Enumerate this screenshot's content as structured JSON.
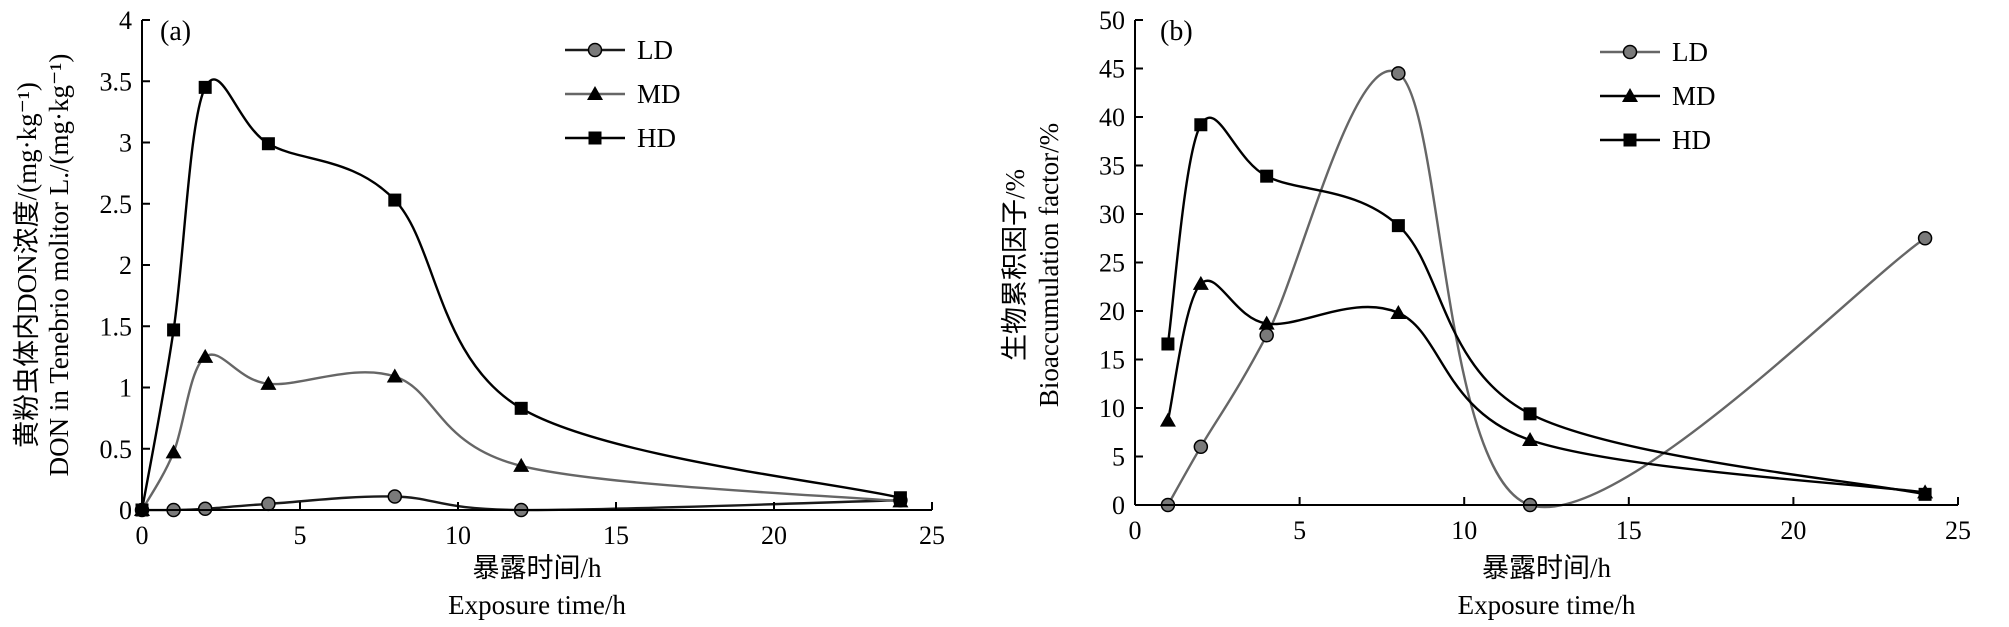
{
  "chart_data": [
    {
      "type": "line",
      "panel_label": "(a)",
      "ylabel_lines": [
        "黄粉虫体内DON浓度/(mg·kg⁻¹)",
        "DON in Tenebrio molitor L./(mg·kg⁻¹)"
      ],
      "xlabel_lines": [
        "暴露时间/h",
        "Exposure time/h"
      ],
      "xlim": [
        0,
        25
      ],
      "ylim": [
        0,
        4
      ],
      "xticks": [
        0,
        5,
        10,
        15,
        20,
        25
      ],
      "yticks": [
        0,
        0.5,
        1,
        1.5,
        2,
        2.5,
        3,
        3.5,
        4
      ],
      "ytick_labels": [
        "0",
        "0.5",
        "1",
        "1.5",
        "2",
        "2.5",
        "3",
        "3.5",
        "4"
      ],
      "grid": false,
      "legend_position": "top-right",
      "series": [
        {
          "name": "LD",
          "marker": "circle",
          "color": "#1a1a1a",
          "x": [
            0,
            1,
            2,
            4,
            8,
            12,
            24
          ],
          "y": [
            0,
            0,
            0.01,
            0.05,
            0.11,
            0,
            0.08
          ]
        },
        {
          "name": "MD",
          "marker": "triangle",
          "color": "#666666",
          "x": [
            0,
            1,
            2,
            4,
            8,
            12,
            24
          ],
          "y": [
            0,
            0.47,
            1.25,
            1.03,
            1.09,
            0.36,
            0.07
          ]
        },
        {
          "name": "HD",
          "marker": "square",
          "color": "#000000",
          "x": [
            0,
            1,
            2,
            4,
            8,
            12,
            24
          ],
          "y": [
            0,
            1.47,
            3.45,
            2.99,
            2.53,
            0.83,
            0.1
          ]
        }
      ]
    },
    {
      "type": "line",
      "panel_label": "(b)",
      "ylabel_lines": [
        "生物累积因子/%",
        "Bioaccumulation factor/%"
      ],
      "xlabel_lines": [
        "暴露时间/h",
        "Exposure time/h"
      ],
      "xlim": [
        0,
        25
      ],
      "ylim": [
        0,
        50
      ],
      "xticks": [
        0,
        5,
        10,
        15,
        20,
        25
      ],
      "yticks": [
        0,
        5,
        10,
        15,
        20,
        25,
        30,
        35,
        40,
        45,
        50
      ],
      "ytick_labels": [
        "0",
        "5",
        "10",
        "15",
        "20",
        "25",
        "30",
        "35",
        "40",
        "45",
        "50"
      ],
      "grid": false,
      "legend_position": "top-right",
      "series": [
        {
          "name": "LD",
          "marker": "circle",
          "color": "#666666",
          "x": [
            1,
            2,
            4,
            8,
            12,
            24
          ],
          "y": [
            0,
            6,
            17.5,
            44.5,
            0,
            27.5
          ]
        },
        {
          "name": "MD",
          "marker": "triangle",
          "color": "#000000",
          "x": [
            1,
            2,
            4,
            8,
            12,
            24
          ],
          "y": [
            8.7,
            22.8,
            18.7,
            19.8,
            6.7,
            1.3
          ]
        },
        {
          "name": "HD",
          "marker": "square",
          "color": "#000000",
          "x": [
            1,
            2,
            4,
            8,
            12,
            24
          ],
          "y": [
            16.6,
            39.2,
            33.9,
            28.8,
            9.4,
            1.1
          ]
        }
      ]
    }
  ]
}
